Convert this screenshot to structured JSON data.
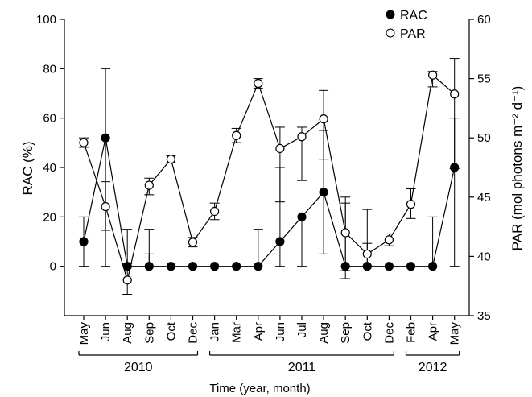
{
  "chart_data": {
    "type": "line",
    "categories": [
      "May",
      "Jun",
      "Aug",
      "Sep",
      "Oct",
      "Dec",
      "Jan",
      "Mar",
      "Apr",
      "Jun",
      "Jul",
      "Aug",
      "Sep",
      "Oct",
      "Dec",
      "Feb",
      "Apr",
      "May"
    ],
    "year_groups": [
      {
        "label": "2010",
        "from": 0,
        "to": 5
      },
      {
        "label": "2011",
        "from": 6,
        "to": 14
      },
      {
        "label": "2012",
        "from": 15,
        "to": 17
      }
    ],
    "xlabel": "Time (year, month)",
    "ylabel_left": "RAC (%)",
    "ylabel_right": "PAR (mol photons m⁻² d⁻¹)",
    "ylim_left": [
      -20,
      100
    ],
    "yticks_left": [
      0,
      20,
      40,
      60,
      80,
      100
    ],
    "ylim_right": [
      35,
      60
    ],
    "yticks_right": [
      35,
      40,
      45,
      50,
      55,
      60
    ],
    "legend_position": "top-right",
    "series": [
      {
        "name": "RAC",
        "axis": "left",
        "marker": "filled-circle",
        "color": "#000000",
        "values": [
          10,
          52,
          0,
          0,
          0,
          0,
          0,
          0,
          0,
          10,
          20,
          30,
          0,
          0,
          0,
          0,
          0,
          40
        ],
        "error_low": [
          0,
          0,
          0,
          5,
          0,
          0,
          0,
          0,
          0,
          0,
          0,
          5,
          -5,
          0,
          0,
          0,
          0,
          0
        ],
        "error_high": [
          20,
          80,
          15,
          15,
          0,
          0,
          0,
          0,
          15,
          40,
          20,
          55,
          28,
          23,
          0,
          0,
          20,
          60
        ]
      },
      {
        "name": "PAR",
        "axis": "right",
        "marker": "open-circle",
        "color": "#000000",
        "values": [
          49.6,
          44.2,
          38.0,
          46.0,
          48.2,
          41.2,
          43.8,
          50.2,
          54.6,
          49.1,
          50.1,
          51.6,
          42.0,
          40.2,
          41.4,
          44.4,
          55.3,
          53.7
        ],
        "error_low": [
          49.2,
          42.2,
          36.8,
          45.2,
          47.9,
          40.8,
          43.1,
          49.6,
          54.2,
          44.6,
          46.4,
          48.2,
          38.8,
          39.2,
          40.9,
          43.2,
          54.3,
          47.4
        ],
        "error_high": [
          50.0,
          46.3,
          39.4,
          46.6,
          48.5,
          41.6,
          44.5,
          50.8,
          55.0,
          50.9,
          50.9,
          54.0,
          44.5,
          41.1,
          41.9,
          45.7,
          55.6,
          56.7
        ]
      }
    ]
  }
}
